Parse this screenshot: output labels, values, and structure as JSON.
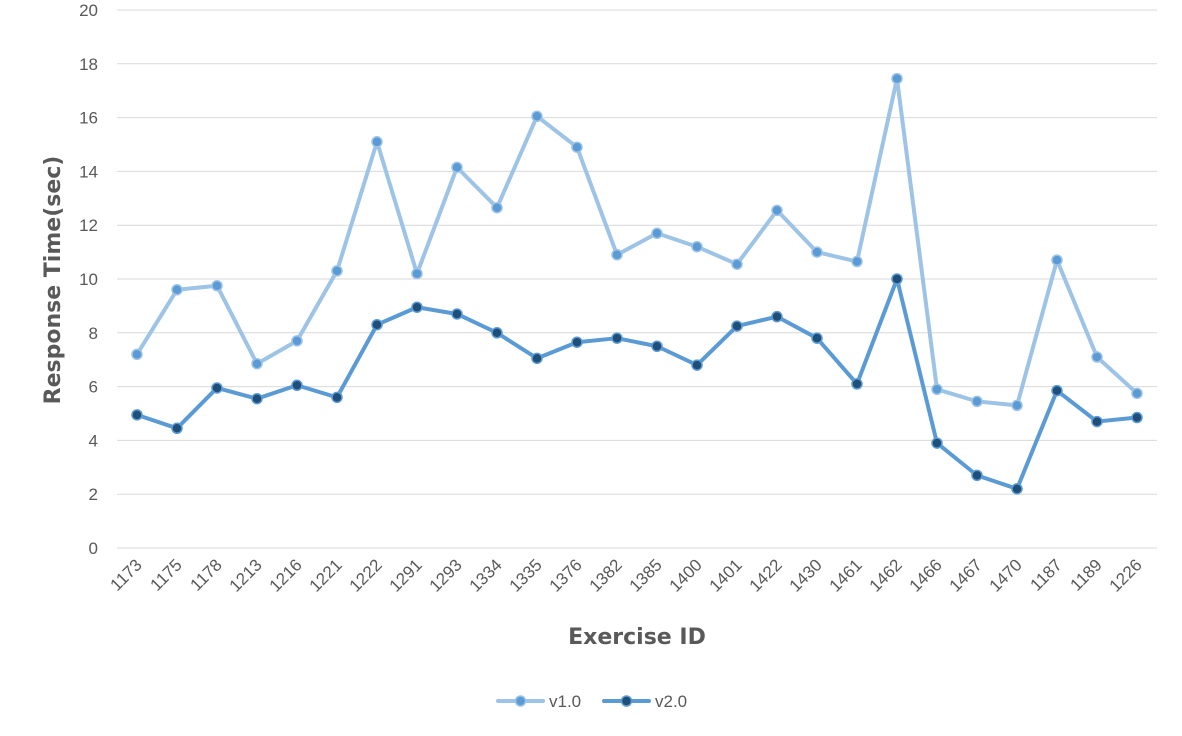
{
  "chart_data": {
    "type": "line",
    "xlabel": "Exercise ID",
    "ylabel": "Response Time(sec)",
    "ylim": [
      0,
      20
    ],
    "yticks": [
      "0",
      "2",
      "4",
      "6",
      "8",
      "10",
      "12",
      "14",
      "16",
      "18",
      "20"
    ],
    "grid": "horizontal",
    "legend_position": "bottom",
    "categories": [
      "1173",
      "1175",
      "1178",
      "1213",
      "1216",
      "1221",
      "1222",
      "1291",
      "1293",
      "1334",
      "1335",
      "1376",
      "1382",
      "1385",
      "1400",
      "1401",
      "1422",
      "1430",
      "1461",
      "1462",
      "1466",
      "1467",
      "1470",
      "1187",
      "1189",
      "1226"
    ],
    "series": [
      {
        "name": "v1.0",
        "color": "#9DC3E6",
        "marker_color": "#5B9BD5",
        "values": [
          7.2,
          9.6,
          9.75,
          6.85,
          7.7,
          10.3,
          15.1,
          10.2,
          14.15,
          12.65,
          16.05,
          14.9,
          10.9,
          11.7,
          11.2,
          10.55,
          12.55,
          11.0,
          10.65,
          17.45,
          5.9,
          5.45,
          5.3,
          10.7,
          7.1,
          5.75
        ]
      },
      {
        "name": "v2.0",
        "color": "#5B9BD5",
        "marker_color": "#1F4E79",
        "values": [
          4.95,
          4.45,
          5.95,
          5.55,
          6.05,
          5.6,
          8.3,
          8.95,
          8.7,
          8.0,
          7.05,
          7.65,
          7.8,
          7.5,
          6.8,
          8.25,
          8.6,
          7.8,
          6.1,
          10.0,
          3.9,
          2.7,
          2.2,
          5.85,
          4.7,
          4.85
        ]
      }
    ]
  }
}
